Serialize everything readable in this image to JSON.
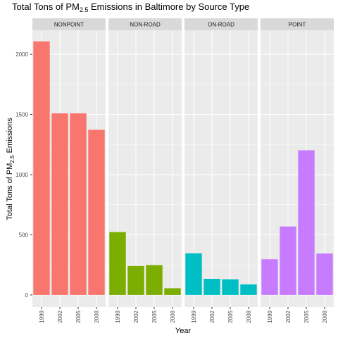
{
  "chart_data": {
    "type": "bar",
    "title": {
      "prefix": "Total Tons of PM",
      "subscript": "2.5",
      "suffix": " Emissions in Baltimore by Source Type"
    },
    "xlabel": "Year",
    "ylabel": {
      "prefix": "Total Tons of PM",
      "subscript": "2.5",
      "suffix": " Emissions"
    },
    "categories": [
      "1999",
      "2002",
      "2005",
      "2008"
    ],
    "ylim": [
      -100,
      2200
    ],
    "yticks": [
      0,
      500,
      1000,
      1500,
      2000
    ],
    "grid": true,
    "legend": "none",
    "facets": [
      {
        "name": "NONPOINT",
        "color": "#F8766D",
        "values": [
          2107.6,
          1509.5,
          1509.5,
          1373.2
        ]
      },
      {
        "name": "NON-ROAD",
        "color": "#7CAE00",
        "values": [
          522.9,
          240.8,
          248.9,
          55.8
        ]
      },
      {
        "name": "ON-ROAD",
        "color": "#00BFC4",
        "values": [
          346.8,
          134.3,
          130.4,
          88.3
        ]
      },
      {
        "name": "POINT",
        "color": "#C77CFF",
        "values": [
          296.8,
          569.3,
          1202.5,
          344.9
        ]
      }
    ]
  }
}
